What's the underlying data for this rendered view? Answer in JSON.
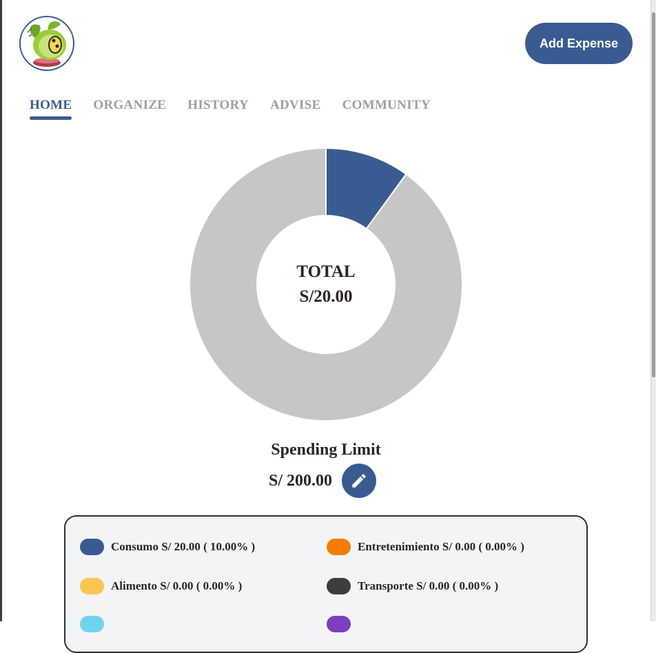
{
  "header": {
    "logo_alt": "logo",
    "add_expense_label": "Add Expense"
  },
  "tabs": [
    {
      "label": "HOME",
      "active": true
    },
    {
      "label": "ORGANIZE",
      "active": false
    },
    {
      "label": "HISTORY",
      "active": false
    },
    {
      "label": "ADVISE",
      "active": false
    },
    {
      "label": "COMMUNITY",
      "active": false
    }
  ],
  "total": {
    "label": "TOTAL",
    "value": "S/20.00"
  },
  "chart_data": {
    "type": "pie",
    "donut": true,
    "slices": [
      {
        "label": "Consumo",
        "percent": 10.0,
        "color": "#385c92"
      },
      {
        "label": "Remaining",
        "percent": 90.0,
        "color": "#c6c6c6"
      }
    ]
  },
  "spending_limit": {
    "title": "Spending Limit",
    "value": "S/  200.00"
  },
  "legend": [
    {
      "text": "Consumo S/ 20.00 ( 10.00% )",
      "color": "#385c92"
    },
    {
      "text": "Entretenimiento S/ 0.00 ( 0.00% )",
      "color": "#f57c00"
    },
    {
      "text": "Alimento S/ 0.00 ( 0.00% )",
      "color": "#f9c74f"
    },
    {
      "text": "Transporte S/ 0.00 ( 0.00% )",
      "color": "#3d3d3d"
    },
    {
      "text": "",
      "color": "#6dd3f0"
    },
    {
      "text": "",
      "color": "#7b3fbf"
    }
  ],
  "colors": {
    "primary": "#385c92",
    "ring_bg": "#c6c6c6"
  }
}
